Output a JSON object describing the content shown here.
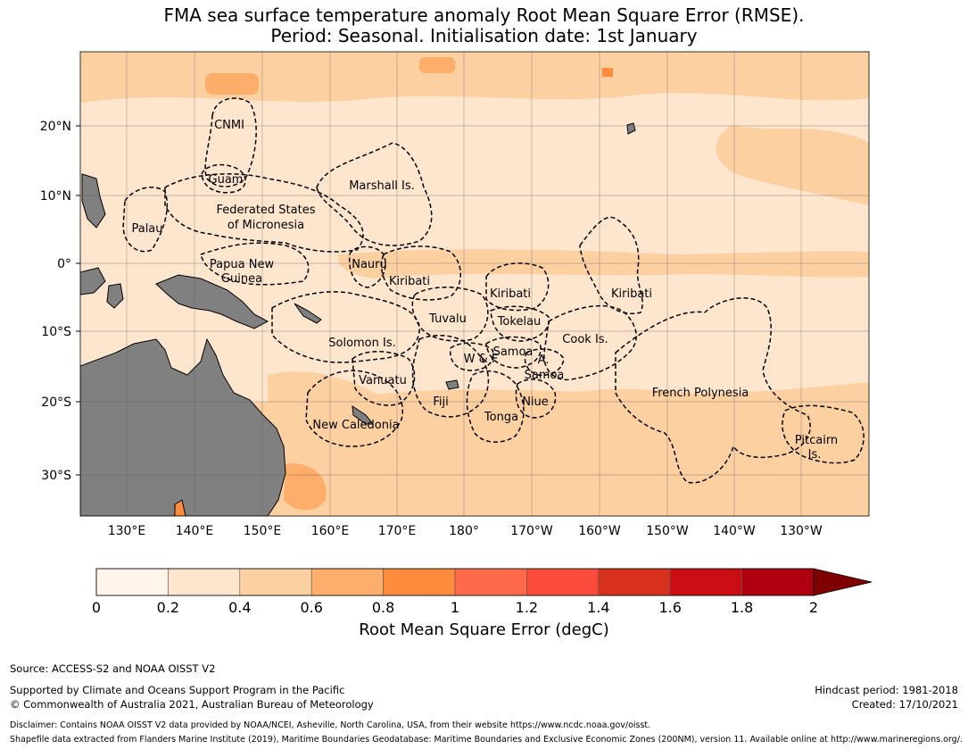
{
  "title": {
    "line1": "FMA sea surface temperature anomaly Root Mean Square Error (RMSE).",
    "line2": "Period: Seasonal. Initialisation date: 1st January"
  },
  "map": {
    "lat_labels": [
      "20°N",
      "10°N",
      "0°",
      "10°S",
      "20°S",
      "30°S"
    ],
    "lon_labels": [
      "130°E",
      "140°E",
      "150°E",
      "160°E",
      "170°E",
      "180°",
      "170°W",
      "160°W",
      "150°W",
      "140°W",
      "130°W"
    ],
    "region_labels": [
      "CNMI",
      "Guam",
      "Marshall Is.",
      "Federated States",
      "of Micronesia",
      "Palau",
      "Papua New",
      "Guinea",
      "Nauru",
      "Kiribati",
      "Kiribati",
      "Kiribati",
      "Tuvalu",
      "Tokelau",
      "Solomon Is.",
      "Cook Is.",
      "Samoa",
      "W & F",
      "A.",
      "Samoa",
      "Vanuatu",
      "Fiji",
      "Niue",
      "Tonga",
      "New Caledonia",
      "French Polynesia",
      "Pitcairn",
      "Is."
    ]
  },
  "colorbar": {
    "label": "Root Mean Square Error (degC)",
    "ticks": [
      "0",
      "0.2",
      "0.4",
      "0.6",
      "0.8",
      "1",
      "1.2",
      "1.4",
      "1.6",
      "1.8",
      "2"
    ],
    "colors": [
      "#fff5eb",
      "#fee6ce",
      "#fdd0a2",
      "#fdae6b",
      "#fd8d3c",
      "#ff6a4a",
      "#fb4b3c",
      "#d7301f",
      "#cb0e14",
      "#b00010",
      "#7f0000"
    ],
    "extend_color": "#7f0000"
  },
  "colors": {
    "land": "#808080",
    "ocean_low": "#fee6ce",
    "ocean_mid": "#fdd0a2",
    "ocean_high": "#fdae6b"
  },
  "footer": {
    "source": "Source: ACCESS-S2 and NOAA OISST V2",
    "support": "Supported by Climate and Oceans Support Program in the Pacific",
    "copyright": "© Commonwealth of Australia 2021, Australian Bureau of Meteorology",
    "hindcast": "Hindcast period: 1981-2018",
    "created": "Created: 17/10/2021",
    "disclaimer": "Disclaimer: Contains NOAA OISST V2 data provided by NOAA/NCEI, Asheville, North Carolina, USA, from their website https://www.ncdc.noaa.gov/oisst.",
    "shapefile": "Shapefile data extracted from Flanders Marine Institute (2019), Maritime Boundaries Geodatabase: Maritime Boundaries and Exclusive Economic Zones (200NM), version 11. Available online at http://www.marineregions.org/."
  }
}
